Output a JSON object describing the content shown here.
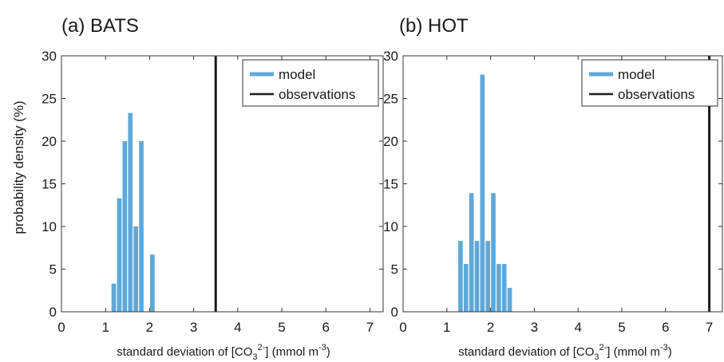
{
  "figure": {
    "shared_ylabel": "probability density (%)"
  },
  "chart_data": [
    {
      "type": "bar",
      "title": "(a) BATS",
      "xlabel_main": "standard deviation of [CO",
      "xlabel_sub": "3",
      "xlabel_sup": "2-",
      "xlabel_tail": "] (mmol m",
      "xlabel_sup2": "-3",
      "xlabel_end": ")",
      "ylabel": "probability density (%)",
      "xlim": [
        0,
        7.3
      ],
      "ylim": [
        0,
        30
      ],
      "xticks": [
        "0",
        "1",
        "2",
        "3",
        "4",
        "5",
        "6",
        "7"
      ],
      "yticks": [
        "0",
        "5",
        "10",
        "15",
        "20",
        "25",
        "30"
      ],
      "bin_width": 0.125,
      "series": [
        {
          "name": "model",
          "color": "#5fa8d8",
          "bins": [
            {
              "x": 1.125,
              "y": 3.3
            },
            {
              "x": 1.25,
              "y": 13.3
            },
            {
              "x": 1.375,
              "y": 20.0
            },
            {
              "x": 1.5,
              "y": 23.3
            },
            {
              "x": 1.625,
              "y": 10.0
            },
            {
              "x": 1.75,
              "y": 20.0
            },
            {
              "x": 1.875,
              "y": 0
            },
            {
              "x": 2.0,
              "y": 6.7
            }
          ]
        },
        {
          "name": "observations",
          "color": "#1a1a1a",
          "x": 3.5
        }
      ],
      "legend": "top-right"
    },
    {
      "type": "bar",
      "title": "(b) HOT",
      "xlabel_main": "standard deviation of [CO",
      "xlabel_sub": "3",
      "xlabel_sup": "2-",
      "xlabel_tail": "] (mmol m",
      "xlabel_sup2": "-3",
      "xlabel_end": ")",
      "ylabel": "",
      "xlim": [
        0,
        7.3
      ],
      "ylim": [
        0,
        30
      ],
      "xticks": [
        "0",
        "1",
        "2",
        "3",
        "4",
        "5",
        "6",
        "7"
      ],
      "yticks": [
        "0",
        "5",
        "10",
        "15",
        "20",
        "25",
        "30"
      ],
      "bin_width": 0.125,
      "series": [
        {
          "name": "model",
          "color": "#5fa8d8",
          "bins": [
            {
              "x": 1.25,
              "y": 8.3
            },
            {
              "x": 1.375,
              "y": 5.6
            },
            {
              "x": 1.5,
              "y": 13.9
            },
            {
              "x": 1.625,
              "y": 8.3
            },
            {
              "x": 1.75,
              "y": 27.8
            },
            {
              "x": 1.875,
              "y": 8.3
            },
            {
              "x": 2.0,
              "y": 13.9
            },
            {
              "x": 2.125,
              "y": 5.6
            },
            {
              "x": 2.25,
              "y": 5.6
            },
            {
              "x": 2.375,
              "y": 2.8
            }
          ]
        },
        {
          "name": "observations",
          "color": "#1a1a1a",
          "x": 7.0
        }
      ],
      "legend": "top-right"
    }
  ]
}
